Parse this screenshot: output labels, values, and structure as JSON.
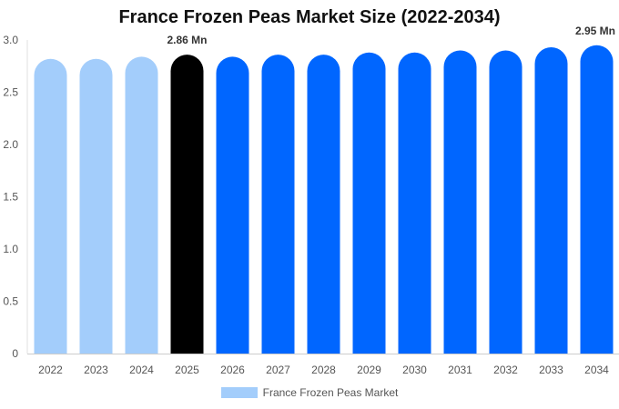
{
  "chart_data": {
    "type": "bar",
    "title": "France Frozen Peas Market Size (2022-2034)",
    "xlabel": "",
    "ylabel": "",
    "categories": [
      "2022",
      "2023",
      "2024",
      "2025",
      "2026",
      "2027",
      "2028",
      "2029",
      "2030",
      "2031",
      "2032",
      "2033",
      "2034"
    ],
    "series": [
      {
        "name": "France Frozen Peas Market",
        "values": [
          2.82,
          2.82,
          2.84,
          2.86,
          2.84,
          2.86,
          2.86,
          2.88,
          2.88,
          2.9,
          2.9,
          2.93,
          2.95
        ]
      }
    ],
    "ylim": [
      0,
      3.0
    ],
    "yticks": [
      "0",
      "0.5",
      "1.0",
      "1.5",
      "2.0",
      "2.5",
      "3.0"
    ],
    "ytick_values": [
      0,
      0.5,
      1.0,
      1.5,
      2.0,
      2.5,
      3.0
    ],
    "data_labels": [
      {
        "category": "2025",
        "text": "2.86 Mn"
      },
      {
        "category": "2034",
        "text": "2.95 Mn"
      }
    ],
    "bar_colors": {
      "historical": "#a3cdfb",
      "current": "#000000",
      "forecast": "#0066ff"
    },
    "historical_categories": [
      "2022",
      "2023",
      "2024"
    ],
    "current_category": "2025",
    "legend": {
      "placement": "bottom-center",
      "color": "#a3cdfb"
    },
    "grid": false
  }
}
